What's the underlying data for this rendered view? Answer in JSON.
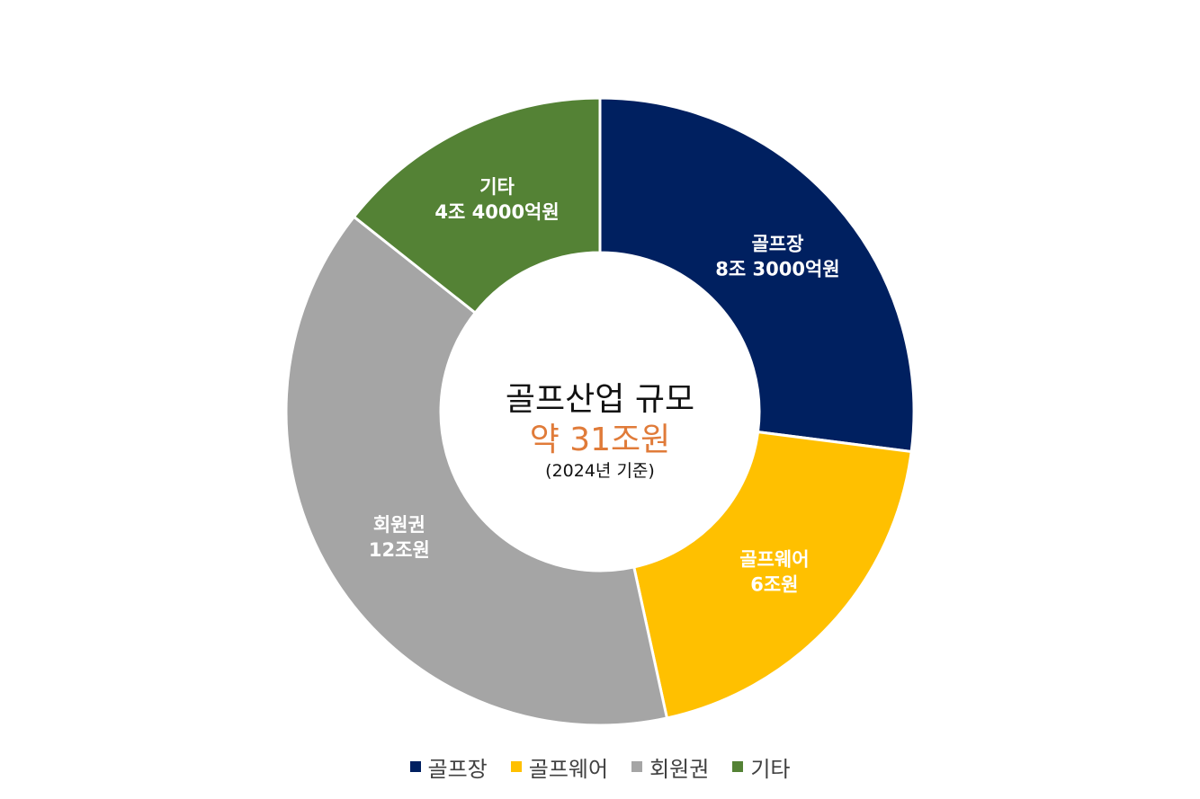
{
  "chart_data": {
    "type": "pie",
    "title": "골프산업 규모",
    "total_label": "약 31조원",
    "note": "(2024년 기준)",
    "unit": "조원",
    "slices": [
      {
        "name": "골프장",
        "value": 8.3,
        "label_line1": "골프장",
        "label_line2": "8조 3000억원",
        "color": "#002060"
      },
      {
        "name": "골프웨어",
        "value": 6,
        "label_line1": "골프웨어",
        "label_line2": "6조원",
        "color": "#FFC000"
      },
      {
        "name": "회원권",
        "value": 12,
        "label_line1": "회원권",
        "label_line2": "12조원",
        "color": "#A5A5A5"
      },
      {
        "name": "기타",
        "value": 4.4,
        "label_line1": "기타",
        "label_line2": "4조 4000억원",
        "color": "#548235"
      }
    ],
    "legend": {
      "position": "bottom",
      "items": [
        "골프장",
        "골프웨어",
        "회원권",
        "기타"
      ]
    }
  }
}
